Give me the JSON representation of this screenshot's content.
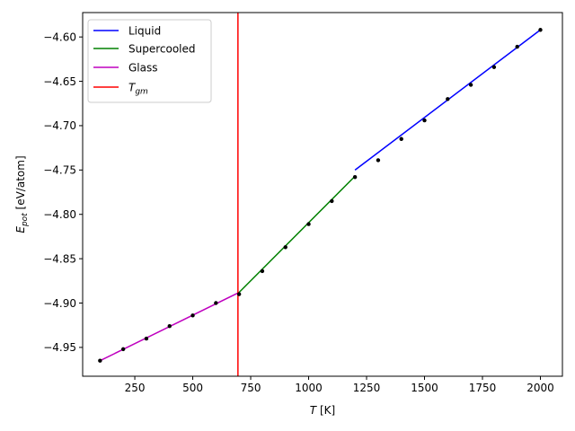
{
  "chart_data": {
    "type": "line",
    "title": "",
    "xlabel": {
      "main": "T",
      "unit": " [K]"
    },
    "ylabel": {
      "main": "E",
      "sub": "pot",
      "unit": " [eV/atom]"
    },
    "xlim": [
      25,
      2095
    ],
    "ylim": [
      -4.9825,
      -4.5725
    ],
    "xticks": [
      250,
      500,
      750,
      1000,
      1250,
      1500,
      1750,
      2000
    ],
    "xtick_labels": [
      "250",
      "500",
      "750",
      "1000",
      "1250",
      "1500",
      "1750",
      "2000"
    ],
    "yticks": [
      -4.95,
      -4.9,
      -4.85,
      -4.8,
      -4.75,
      -4.7,
      -4.65,
      -4.6
    ],
    "ytick_labels": [
      "−4.95",
      "−4.90",
      "−4.85",
      "−4.80",
      "−4.75",
      "−4.70",
      "−4.65",
      "−4.60"
    ],
    "grid": false,
    "legend_position": "top-left",
    "series": [
      {
        "name": "Liquid",
        "color": "#0000ff",
        "x": [
          1200,
          2000
        ],
        "y": [
          -4.75,
          -4.592
        ]
      },
      {
        "name": "Supercooled",
        "color": "#008000",
        "x": [
          700,
          1200
        ],
        "y": [
          -4.888,
          -4.757
        ]
      },
      {
        "name": "Glass",
        "color": "#bf00bf",
        "x": [
          100,
          700
        ],
        "y": [
          -4.965,
          -4.888
        ]
      }
    ],
    "vline": {
      "name_main": "T",
      "name_sub": "gm",
      "color": "#ff0000",
      "x": 695
    },
    "points": {
      "color": "#000000",
      "x": [
        100,
        200,
        300,
        400,
        500,
        600,
        700,
        800,
        900,
        1000,
        1100,
        1200,
        1300,
        1400,
        1500,
        1600,
        1700,
        1800,
        1900,
        2000
      ],
      "y": [
        -4.965,
        -4.952,
        -4.94,
        -4.926,
        -4.914,
        -4.9,
        -4.89,
        -4.864,
        -4.837,
        -4.811,
        -4.785,
        -4.758,
        -4.739,
        -4.715,
        -4.694,
        -4.67,
        -4.654,
        -4.634,
        -4.611,
        -4.592
      ]
    }
  }
}
